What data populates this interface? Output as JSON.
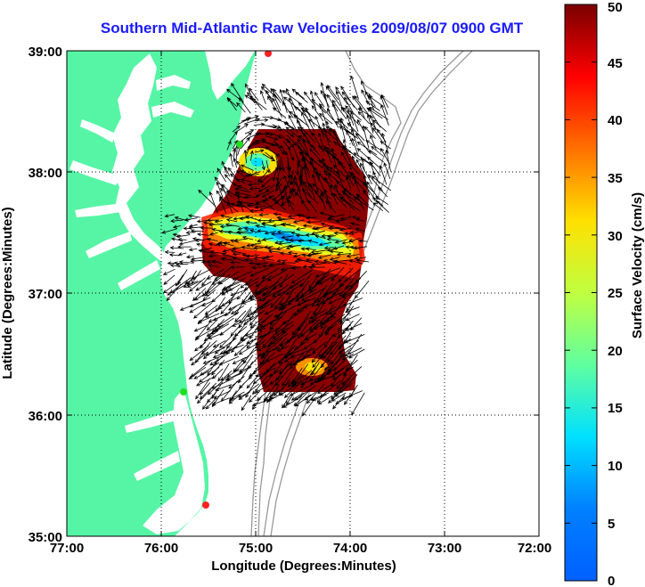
{
  "title": "Southern Mid-Atlantic Raw Velocities 2009/08/07 0900 GMT",
  "xlabel": "Longitude (Degrees:Minutes)",
  "ylabel": "Latitude (Degrees:Minutes)",
  "x_ticks": [
    "77:00",
    "76:00",
    "75:00",
    "74:00",
    "73:00",
    "72:00"
  ],
  "y_ticks": [
    "39:00",
    "38:00",
    "37:00",
    "36:00",
    "35:00"
  ],
  "colorbar": {
    "label": "Surface Velocity (cm/s)",
    "ticks": [
      "0",
      "5",
      "10",
      "15",
      "20",
      "25",
      "30",
      "35",
      "40",
      "45",
      "50"
    ],
    "range": [
      0,
      50
    ],
    "colormap": "jet"
  },
  "colors": {
    "land": "#55f5a5",
    "title": "#1a1aff",
    "bathymetry": "#999999",
    "vectors": "#000000",
    "station_red": "#ff2020",
    "station_green": "#22dd22"
  },
  "stations": [
    {
      "lon": 74.87,
      "lat": 38.98,
      "color": "red"
    },
    {
      "lon": 75.15,
      "lat": 38.23,
      "color": "green"
    },
    {
      "lon": 75.72,
      "lat": 36.2,
      "color": "green"
    },
    {
      "lon": 75.47,
      "lat": 35.25,
      "color": "red"
    }
  ],
  "chart_data": {
    "type": "heatmap",
    "title": "Southern Mid-Atlantic Raw Velocities 2009/08/07 0900 GMT",
    "xlabel": "Longitude (Degrees:Minutes)",
    "ylabel": "Latitude (Degrees:Minutes)",
    "xlim": [
      "77:00",
      "72:00"
    ],
    "ylim": [
      "35:00",
      "39:00"
    ],
    "grid": true,
    "colorbar_label": "Surface Velocity (cm/s)",
    "colorbar_range": [
      0,
      50
    ],
    "features": {
      "eddy_center": {
        "lon": 74.97,
        "lat": 38.05
      },
      "low_speed_band_lat": 37.45,
      "coverage_lon_range": [
        73.75,
        75.55
      ],
      "coverage_lat_range": [
        36.2,
        38.35
      ]
    }
  }
}
